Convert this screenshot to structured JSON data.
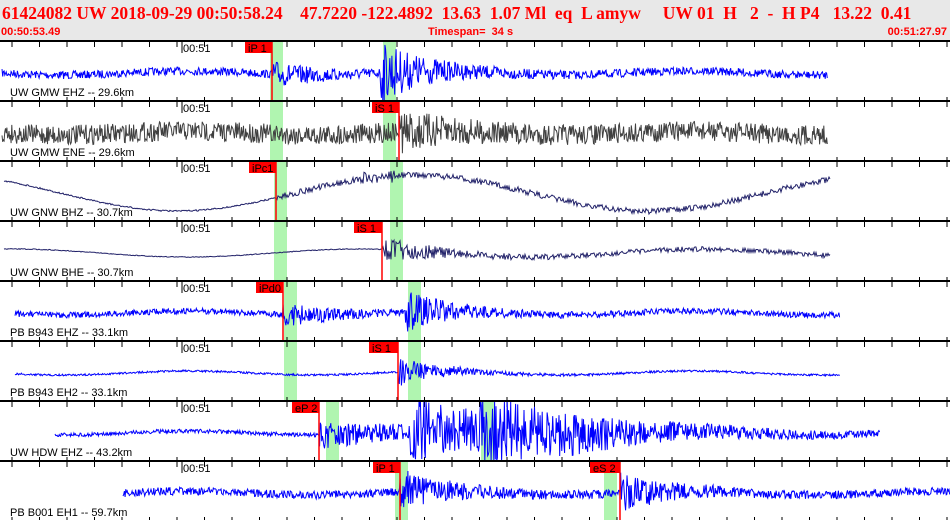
{
  "header": {
    "title": "61424082 UW 2018-09-29 00:50:58.24    47.7220 -122.4892  13.63  1.07 Ml  eq  L amyw     UW 01  H   2  -  H P4   13.22  0.41",
    "start_time": "00:50:53.49",
    "timespan": "Timespan=  34 s",
    "end_time": "00:51:27.97"
  },
  "colors": {
    "header_text": "#ff0000",
    "pick": "#ff0000",
    "pick_window": "#b0f5b0",
    "trace_blue": "#0000ff",
    "trace_gray": "#404040",
    "trace_navy": "#202068"
  },
  "time_tick_label": "00:51",
  "channels": [
    {
      "label": "UW GMW EHZ -- 29.6km",
      "picks": [
        "iP 1"
      ]
    },
    {
      "label": "UW GMW ENE -- 29.6km",
      "picks": [
        "iS 1"
      ]
    },
    {
      "label": "UW GNW BHZ -- 30.7km",
      "picks": [
        "iPc1"
      ]
    },
    {
      "label": "UW GNW BHE -- 30.7km",
      "picks": [
        "iS 1"
      ]
    },
    {
      "label": "PB B943 EHZ -- 33.1km",
      "picks": [
        "iPd0"
      ]
    },
    {
      "label": "PB B943 EH2 -- 33.1km",
      "picks": [
        "iS 1"
      ]
    },
    {
      "label": "UW HDW EHZ -- 43.2km",
      "picks": [
        "eP 2"
      ]
    },
    {
      "label": "PB B001 EH1 -- 59.7km",
      "picks": [
        "iP 1",
        "eS 2"
      ]
    }
  ]
}
